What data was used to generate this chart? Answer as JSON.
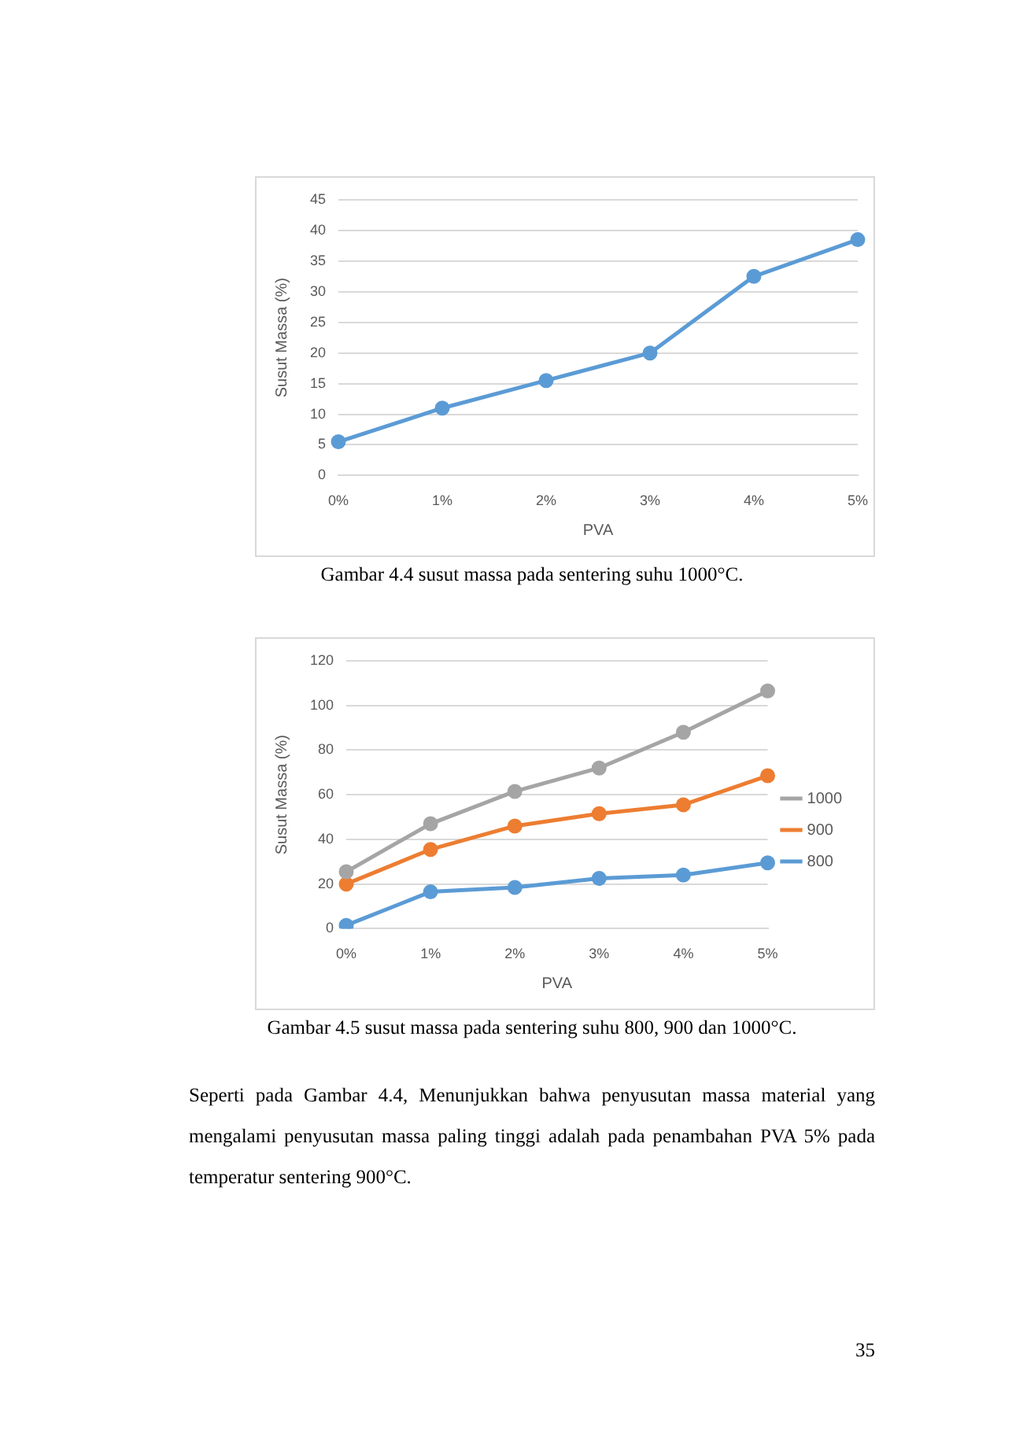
{
  "chart_data": [
    {
      "type": "line",
      "xlabel": "PVA",
      "ylabel": "Susut Massa (%)",
      "categories": [
        "0%",
        "1%",
        "2%",
        "3%",
        "4%",
        "5%"
      ],
      "series": [
        {
          "color": "#5b9bd5",
          "values": [
            5.5,
            11,
            15.5,
            20,
            32.5,
            38.5
          ]
        }
      ],
      "ylim": [
        0,
        45
      ],
      "yticks": [
        0,
        5,
        10,
        15,
        20,
        25,
        30,
        35,
        40,
        45
      ],
      "grid": "y",
      "legend": false,
      "marker": "circle",
      "line_style": "solid",
      "annotations": [
        "Gambar 4.4 susut massa pada sentering suhu 1000°C."
      ]
    },
    {
      "type": "line",
      "xlabel": "PVA",
      "ylabel": "Susut Massa (%)",
      "categories": [
        "0%",
        "1%",
        "2%",
        "3%",
        "4%",
        "5%"
      ],
      "series": [
        {
          "name": "1000",
          "color": "#a5a5a5",
          "values": [
            25.5,
            47,
            61.5,
            72,
            88,
            106.5
          ]
        },
        {
          "name": "900",
          "color": "#ed7d31",
          "values": [
            20,
            35.5,
            46,
            51.5,
            55.5,
            68.5
          ]
        },
        {
          "name": "800",
          "color": "#5b9bd5",
          "values": [
            1.5,
            16.5,
            18.5,
            22.5,
            24,
            29.5
          ]
        }
      ],
      "ylim": [
        0,
        120
      ],
      "yticks": [
        0,
        20,
        40,
        60,
        80,
        100,
        120
      ],
      "grid": "y",
      "legend": "right",
      "marker": "circle",
      "line_style": "solid",
      "annotations": [
        "Gambar 4.5 susut massa pada sentering suhu 800, 900 dan 1000°C.",
        "Seperti pada Gambar 4.4, Menunjukkan bahwa penyusutan massa material yang mengalami penyusutan massa paling tinggi adalah pada penambahan PVA 5% pada temperatur sentering 900°C.",
        "35"
      ]
    }
  ]
}
